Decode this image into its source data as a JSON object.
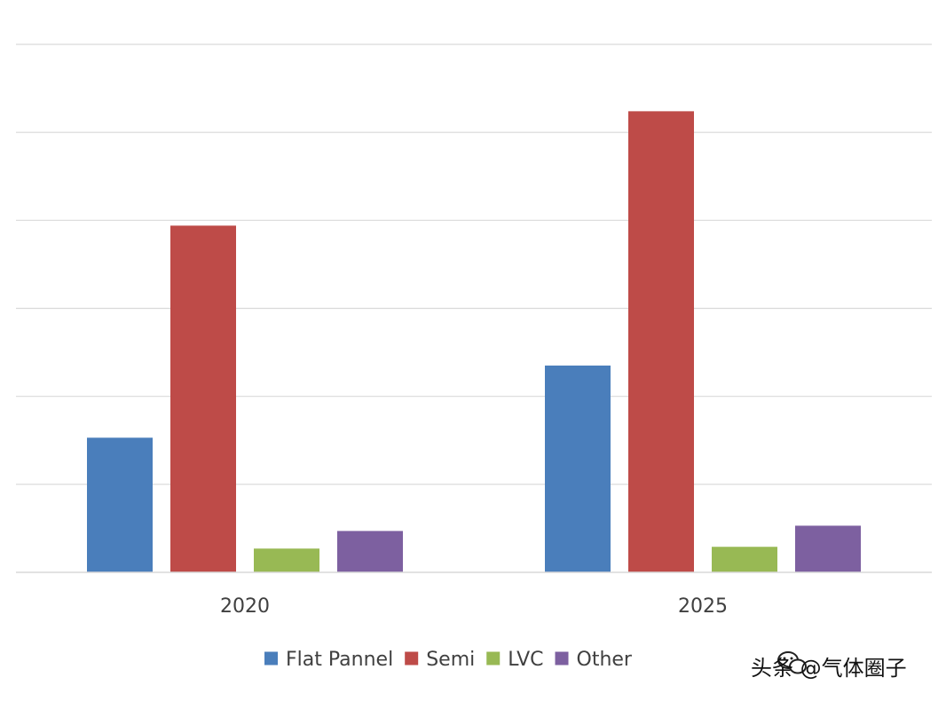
{
  "chart_data": {
    "type": "bar",
    "categories": [
      "2020",
      "2025"
    ],
    "series": [
      {
        "name": "Flat Pannel",
        "color": "#4a7ebb",
        "values": [
          1.53,
          2.35
        ]
      },
      {
        "name": "Semi",
        "color": "#be4b48",
        "values": [
          3.94,
          5.24
        ]
      },
      {
        "name": "LVC",
        "color": "#98b954",
        "values": [
          0.27,
          0.29
        ]
      },
      {
        "name": "Other",
        "color": "#7d60a0",
        "values": [
          0.47,
          0.53
        ]
      }
    ],
    "ylim": [
      0,
      6
    ],
    "gridlines": [
      0,
      1,
      2,
      3,
      4,
      5,
      6
    ],
    "y_tick_labels_shown": false,
    "title": "",
    "xlabel": "",
    "ylabel": "",
    "legend_position": "bottom"
  },
  "watermark": {
    "text": "头条 @气体圈子",
    "icon": "wechat-icon"
  }
}
